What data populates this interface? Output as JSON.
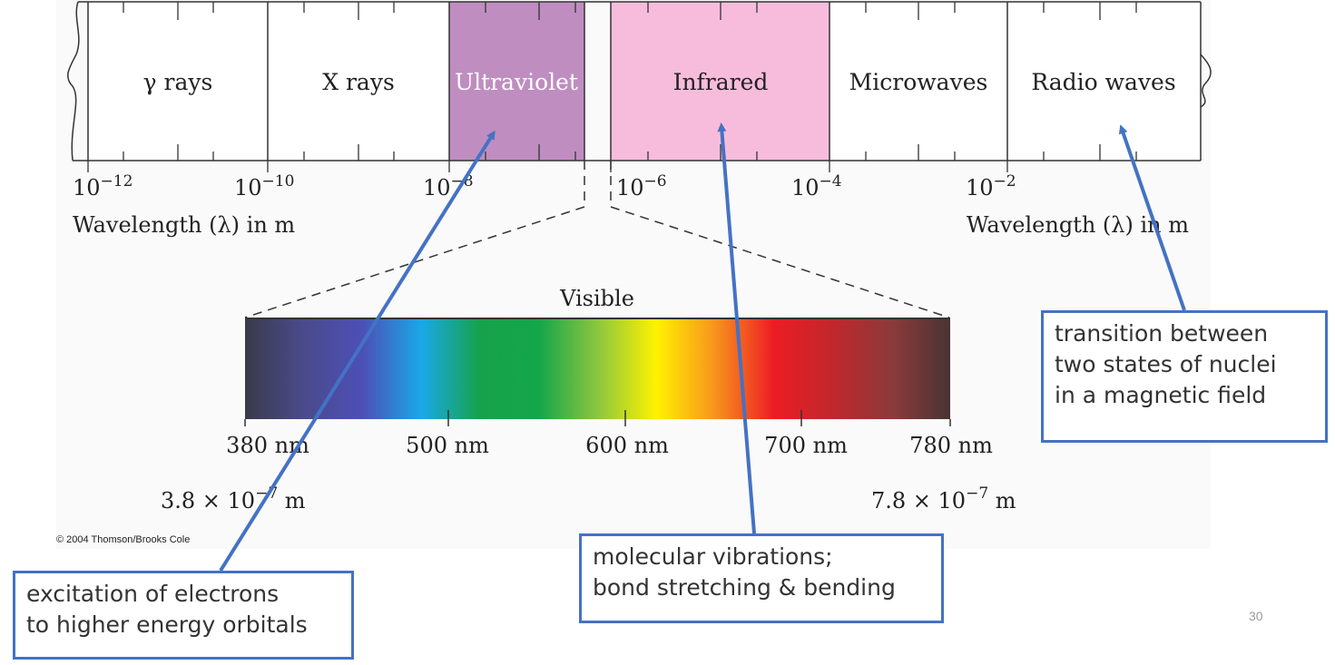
{
  "spectrum": {
    "bands": [
      {
        "label": "γ rays",
        "color": "#ffffff",
        "text_color": "#222222"
      },
      {
        "label": "X rays",
        "color": "#ffffff",
        "text_color": "#222222"
      },
      {
        "label": "Ultraviolet",
        "color": "#bf8dc0",
        "text_color": "#ffffff"
      },
      {
        "label": "Infrared",
        "color": "#f7bcdc",
        "text_color": "#222222"
      },
      {
        "label": "Microwaves",
        "color": "#ffffff",
        "text_color": "#222222"
      },
      {
        "label": "Radio waves",
        "color": "#ffffff",
        "text_color": "#222222"
      }
    ],
    "ticks": [
      {
        "base": "10",
        "exp": "−12"
      },
      {
        "base": "10",
        "exp": "−10"
      },
      {
        "base": "10",
        "exp": "−8"
      },
      {
        "base": "10",
        "exp": "−6"
      },
      {
        "base": "10",
        "exp": "−4"
      },
      {
        "base": "10",
        "exp": "−2"
      }
    ],
    "axis_label_left": "Wavelength (λ) in m",
    "axis_label_right": "Wavelength (λ) in m"
  },
  "visible": {
    "title": "Visible",
    "ticks": [
      "380 nm",
      "500 nm",
      "600 nm",
      "700 nm",
      "780 nm"
    ],
    "left_value": {
      "base": "3.8 × 10",
      "exp": "−7",
      "unit": " m"
    },
    "right_value": {
      "base": "7.8 × 10",
      "exp": "−7",
      "unit": " m"
    },
    "gradient_colors": [
      "#3a3a4a",
      "#4b4a8c",
      "#4c50b6",
      "#1aa8e8",
      "#16a24a",
      "#14a64a",
      "#8cc63f",
      "#fff200",
      "#f7941d",
      "#ed1c24",
      "#c1272d",
      "#8b3a3a",
      "#4a3434"
    ]
  },
  "copyright": "© 2004 Thomson/Brooks Cole",
  "callouts": {
    "uv": [
      "excitation of electrons",
      "to higher energy orbitals"
    ],
    "ir": [
      "molecular vibrations;",
      "bond stretching & bending"
    ],
    "radio": [
      "transition between",
      "two states of nuclei",
      "in a magnetic field"
    ]
  },
  "arrow_color": "#4472c4",
  "slide_number": "30"
}
